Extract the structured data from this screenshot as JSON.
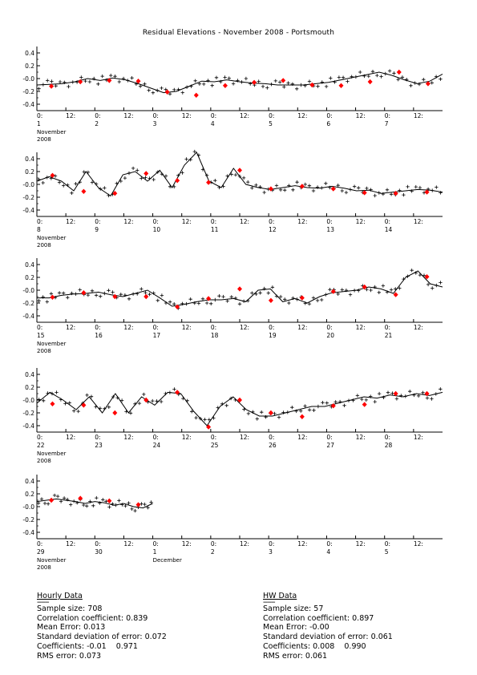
{
  "title": "Residual Elevations - November 2008 - Portsmouth",
  "chart_data": [
    {
      "type": "line",
      "y_ticks": [
        "0.4",
        "0.2",
        "-0.0",
        "-0.2",
        "-0.4"
      ],
      "ylim": [
        -0.5,
        0.5
      ],
      "x_ticks": [
        "0:",
        "12:",
        "0:",
        "12:",
        "0:",
        "12:",
        "0:",
        "12:",
        "0:",
        "12:",
        "0:",
        "12:",
        "0:",
        "12:"
      ],
      "day_labels": [
        "1",
        "2",
        "3",
        "4",
        "5",
        "6",
        "7"
      ],
      "month_label": "November",
      "year_label": "2008",
      "series": [
        {
          "values": [
            -0.1,
            -0.09,
            -0.08,
            -0.05,
            0.0,
            -0.03,
            0.01,
            -0.02,
            -0.08,
            -0.15,
            -0.22,
            -0.2,
            -0.12,
            -0.04,
            -0.05,
            -0.02,
            -0.05,
            -0.07,
            -0.08,
            -0.1,
            -0.1,
            -0.1,
            -0.08,
            -0.06,
            -0.02,
            0.02,
            0.06,
            0.1,
            0.05,
            -0.02,
            -0.08,
            -0.04,
            0.07
          ]
        },
        {
          "values": [
            -0.12,
            -0.05,
            -0.03,
            -0.04,
            -0.21,
            -0.26,
            -0.11,
            -0.06,
            -0.03,
            -0.1,
            -0.11,
            -0.05,
            0.1,
            -0.08
          ]
        }
      ]
    },
    {
      "type": "line",
      "y_ticks": [
        "0.4",
        "0.2",
        "-0.0",
        "-0.2",
        "-0.4"
      ],
      "ylim": [
        -0.5,
        0.5
      ],
      "x_ticks": [
        "0:",
        "12:",
        "0:",
        "12:",
        "0:",
        "12:",
        "0:",
        "12:",
        "0:",
        "12:",
        "0:",
        "12:",
        "0:",
        "12:"
      ],
      "day_labels": [
        "8",
        "9",
        "10",
        "11",
        "12",
        "13",
        "14"
      ],
      "month_label": "November",
      "year_label": "2008",
      "series": [
        {
          "values": [
            0.05,
            0.12,
            0.05,
            -0.1,
            0.2,
            -0.05,
            -0.18,
            0.15,
            0.2,
            0.05,
            0.22,
            -0.05,
            0.3,
            0.5,
            0.05,
            -0.05,
            0.25,
            0.0,
            -0.05,
            -0.08,
            -0.05,
            -0.02,
            -0.05,
            -0.06,
            -0.03,
            -0.06,
            -0.1,
            -0.09,
            -0.14,
            -0.12,
            -0.1,
            -0.08,
            -0.09,
            -0.12
          ]
        },
        {
          "values": [
            0.14,
            -0.11,
            -0.14,
            0.17,
            0.06,
            0.03,
            0.22,
            -0.07,
            -0.03,
            -0.07,
            -0.13,
            -0.14,
            -0.12
          ]
        }
      ]
    },
    {
      "type": "line",
      "y_ticks": [
        "0.4",
        "0.2",
        "-0.0",
        "-0.2",
        "-0.4"
      ],
      "ylim": [
        -0.5,
        0.5
      ],
      "x_ticks": [
        "0:",
        "12:",
        "0:",
        "12:",
        "0:",
        "12:",
        "0:",
        "12:",
        "0:",
        "12:",
        "0:",
        "12:",
        "0:",
        "12:"
      ],
      "day_labels": [
        "15",
        "16",
        "17",
        "18",
        "19",
        "20",
        "21"
      ],
      "month_label": "November",
      "year_label": "2008",
      "series": [
        {
          "values": [
            -0.12,
            -0.12,
            -0.08,
            -0.06,
            -0.05,
            -0.03,
            -0.07,
            -0.1,
            -0.05,
            0.0,
            -0.12,
            -0.25,
            -0.22,
            -0.18,
            -0.15,
            -0.15,
            -0.13,
            -0.18,
            0.0,
            0.02,
            -0.18,
            -0.13,
            -0.2,
            -0.1,
            -0.04,
            -0.02,
            0.0,
            0.05,
            0.02,
            -0.05,
            0.2,
            0.3,
            0.1,
            0.05
          ]
        },
        {
          "values": [
            -0.11,
            -0.04,
            -0.1,
            -0.1,
            -0.26,
            -0.13,
            0.02,
            -0.16,
            -0.12,
            -0.02,
            0.05,
            -0.07,
            0.21
          ]
        }
      ]
    },
    {
      "type": "line",
      "y_ticks": [
        "0.4",
        "0.2",
        "-0.0",
        "-0.2",
        "-0.4"
      ],
      "ylim": [
        -0.5,
        0.5
      ],
      "x_ticks": [
        "0:",
        "12:",
        "0:",
        "12:",
        "0:",
        "12:",
        "0:",
        "12:",
        "0:",
        "12:",
        "0:",
        "12:",
        "0:",
        "12:"
      ],
      "day_labels": [
        "22",
        "23",
        "24",
        "25",
        "26",
        "27",
        "28"
      ],
      "month_label": "November",
      "year_label": "2008",
      "series": [
        {
          "values": [
            -0.05,
            0.12,
            0.0,
            -0.15,
            0.05,
            -0.2,
            0.1,
            -0.2,
            0.05,
            -0.08,
            0.12,
            0.1,
            -0.18,
            -0.4,
            -0.1,
            0.05,
            -0.15,
            -0.25,
            -0.25,
            -0.2,
            -0.15,
            -0.1,
            -0.1,
            -0.05,
            0.0,
            0.05,
            0.03,
            0.08,
            0.05,
            0.1,
            0.07,
            0.12
          ]
        },
        {
          "values": [
            -0.06,
            -0.08,
            -0.2,
            0.0,
            0.12,
            -0.42,
            0.0,
            -0.2,
            -0.26,
            -0.09,
            -0.07,
            0.1,
            0.1
          ]
        }
      ]
    },
    {
      "type": "line",
      "y_ticks": [
        "0.4",
        "0.2",
        "-0.0",
        "-0.2",
        "-0.4"
      ],
      "ylim": [
        -0.5,
        0.5
      ],
      "x_ticks": [
        "0:",
        "12:",
        "0:",
        "12:",
        "0:",
        "12:",
        "0:",
        "12:",
        "0:",
        "12:",
        "0:",
        "12:",
        "0:",
        "12:"
      ],
      "day_labels": [
        "29",
        "30",
        "1",
        "2",
        "3",
        "4",
        "5"
      ],
      "month_label": "November",
      "year_label": "2008",
      "month2_label": "December",
      "series": [
        {
          "values": [
            0.08,
            0.1,
            0.12,
            0.1,
            0.08,
            0.05,
            0.08,
            0.06,
            0.02,
            0.05,
            0.0,
            -0.02,
            0.05
          ]
        },
        {
          "values": [
            0.1,
            0.13,
            0.09,
            0.03
          ]
        }
      ]
    }
  ],
  "stats": {
    "hourly": {
      "heading": "Hourly Data",
      "underline": "------",
      "lines": [
        "Sample size: 708",
        "Correlation coefficient: 0.839",
        "Mean Error: 0.013",
        "Standard deviation of error: 0.072",
        "Coefficients: -0.01    0.971",
        "RMS error: 0.073"
      ]
    },
    "hw": {
      "heading": "HW Data",
      "underline": "------",
      "lines": [
        "Sample size: 57",
        "Correlation coefficient: 0.897",
        "Mean Error: -0.00",
        "Standard deviation of error: 0.061",
        "Coefficients: 0.008    0.990",
        "RMS error: 0.061"
      ]
    }
  },
  "colors": {
    "line": "#000000",
    "hw_marker": "#ff0000",
    "text": "#000000"
  }
}
